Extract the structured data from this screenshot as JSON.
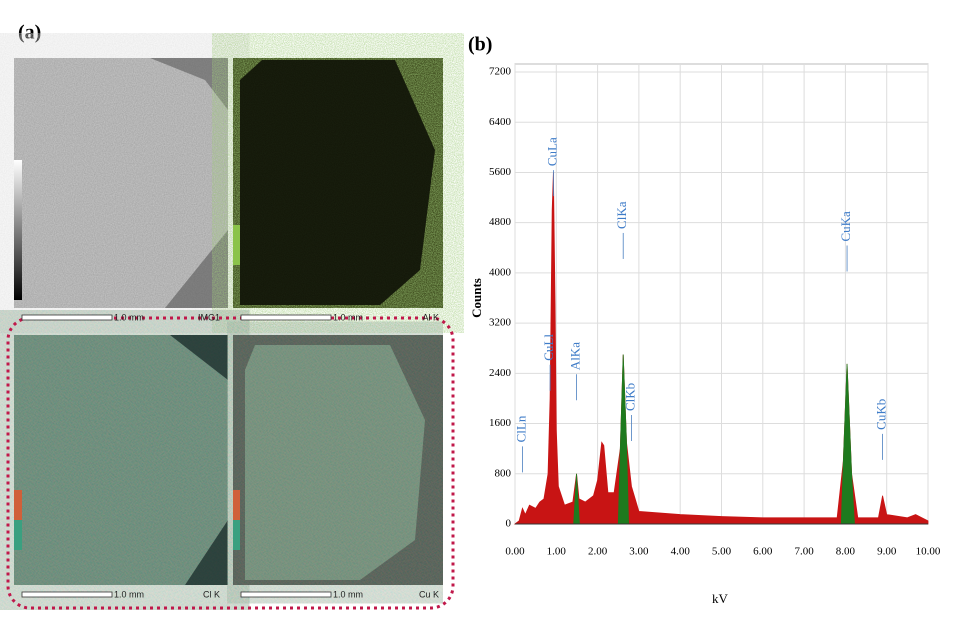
{
  "panel_a": {
    "label": "(a)",
    "maps": [
      {
        "scale": "1.0 mm",
        "name": "IMG1"
      },
      {
        "scale": "1.0 mm",
        "name": "Al K"
      },
      {
        "scale": "1.0 mm",
        "name": "Cl K"
      },
      {
        "scale": "1.0 mm",
        "name": "Cu K"
      }
    ]
  },
  "chart_data": {
    "type": "area",
    "panel_label": "(b)",
    "xlabel": "kV",
    "ylabel": "Counts",
    "xlim": [
      0,
      10
    ],
    "ylim": [
      0,
      7200
    ],
    "xticks": [
      {
        "value": 0,
        "label": "0.00"
      },
      {
        "value": 1,
        "label": "1.00"
      },
      {
        "value": 2,
        "label": "2.00"
      },
      {
        "value": 3,
        "label": "3.00"
      },
      {
        "value": 4,
        "label": "4.00"
      },
      {
        "value": 5,
        "label": "5.00"
      },
      {
        "value": 6,
        "label": "6.00"
      },
      {
        "value": 7,
        "label": "7.00"
      },
      {
        "value": 8,
        "label": "8.00"
      },
      {
        "value": 9,
        "label": "9.00"
      },
      {
        "value": 10,
        "label": "10.00"
      }
    ],
    "yticks": [
      0,
      800,
      1600,
      2400,
      3200,
      4000,
      4800,
      5600,
      6400,
      7200
    ],
    "series": [
      {
        "color": "#c81414",
        "x": [
          0,
          0.1,
          0.18,
          0.25,
          0.35,
          0.5,
          0.6,
          0.7,
          0.8,
          0.85,
          0.9,
          0.93,
          0.97,
          1.0,
          1.05,
          1.2,
          1.4,
          1.49,
          1.55,
          1.7,
          1.9,
          2.0,
          2.1,
          2.15,
          2.25,
          2.4,
          2.55,
          2.62,
          2.7,
          2.82,
          3.0,
          4.0,
          5.0,
          6.0,
          7.0,
          7.8,
          7.95,
          8.04,
          8.15,
          8.3,
          8.8,
          8.9,
          9.0,
          9.5,
          9.7,
          9.85,
          10.0
        ],
        "values": [
          0,
          50,
          250,
          150,
          300,
          250,
          350,
          400,
          800,
          2000,
          5000,
          5600,
          3500,
          1500,
          600,
          300,
          350,
          800,
          400,
          350,
          450,
          700,
          1300,
          1250,
          500,
          500,
          1200,
          2700,
          1300,
          600,
          200,
          150,
          120,
          100,
          100,
          100,
          1000,
          2550,
          800,
          100,
          100,
          450,
          150,
          100,
          150,
          100,
          50
        ]
      },
      {
        "color": "#1e7a1e",
        "x": [
          1.42,
          1.49,
          1.56
        ],
        "values": [
          0,
          800,
          0
        ]
      },
      {
        "color": "#1e7a1e",
        "x": [
          2.5,
          2.55,
          2.62,
          2.7,
          2.75
        ],
        "values": [
          0,
          1200,
          2700,
          1300,
          0
        ]
      },
      {
        "color": "#1e7a1e",
        "x": [
          7.9,
          7.95,
          8.04,
          8.15,
          8.22
        ],
        "values": [
          0,
          1000,
          2550,
          800,
          0
        ]
      }
    ],
    "annotations": [
      {
        "text": "ClLn",
        "x": 0.18,
        "y": 1300
      },
      {
        "text": "CuLa",
        "x": 0.93,
        "y": 5700
      },
      {
        "text": "CuLl",
        "x": 0.85,
        "y": 2600
      },
      {
        "text": "AlKa",
        "x": 1.49,
        "y": 2450
      },
      {
        "text": "ClKa",
        "x": 2.62,
        "y": 4700
      },
      {
        "text": "ClKb",
        "x": 2.82,
        "y": 1800
      },
      {
        "text": "CuKa",
        "x": 8.04,
        "y": 4500
      },
      {
        "text": "CuKb",
        "x": 8.9,
        "y": 1500
      }
    ]
  }
}
